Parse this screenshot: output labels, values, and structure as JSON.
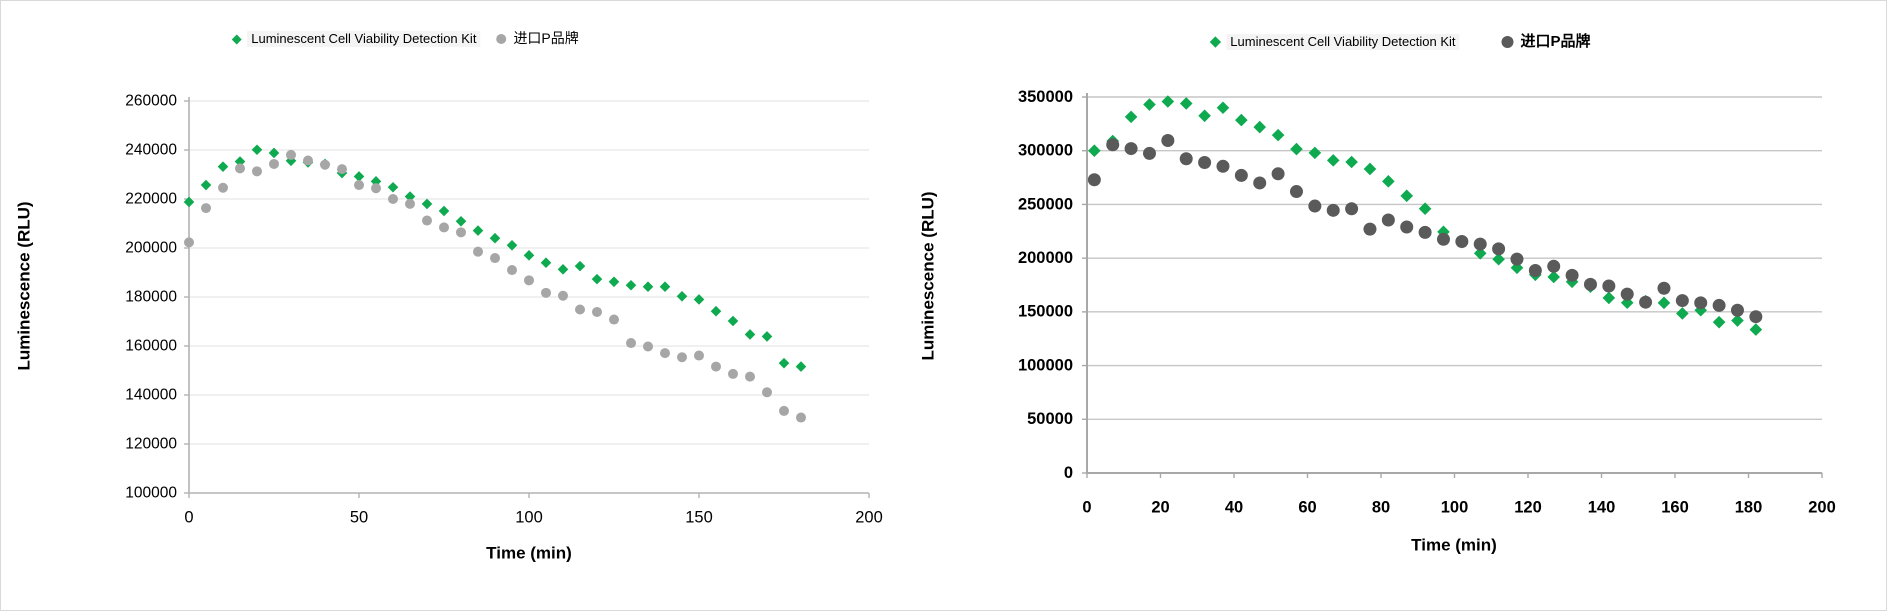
{
  "page": {
    "background": "#ffffff",
    "border_color": "#d9d9d9"
  },
  "chart_data": [
    {
      "id": "left-chart",
      "type": "scatter",
      "title": "",
      "xlabel": "Time (min)",
      "ylabel": "Luminescence (RLU)",
      "xlim": [
        0,
        200
      ],
      "ylim": [
        100000,
        260000
      ],
      "x_ticks": [
        0,
        50,
        100,
        150,
        200
      ],
      "y_ticks": [
        100000,
        120000,
        140000,
        160000,
        180000,
        200000,
        220000,
        240000,
        260000
      ],
      "grid": true,
      "tick_labels_bold": false,
      "legend_position": "top",
      "legend": [
        {
          "label": "Luminescent Cell Viability Detection Kit",
          "marker": "diamond",
          "color": "#0faa50",
          "bold": false,
          "highlight": true
        },
        {
          "label": "进口P品牌",
          "marker": "circle",
          "color": "#a6a6a6",
          "bold": false,
          "highlight": false
        }
      ],
      "series": [
        {
          "name": "Luminescent Cell Viability Detection Kit",
          "marker": "diamond",
          "color": "#0faa50",
          "size": 4.5,
          "x": [
            0,
            5,
            10,
            15,
            20,
            25,
            30,
            35,
            40,
            45,
            50,
            55,
            60,
            65,
            70,
            75,
            80,
            85,
            90,
            95,
            100,
            105,
            110,
            115,
            120,
            125,
            130,
            135,
            140,
            145,
            150,
            155,
            160,
            165,
            170,
            175,
            180
          ],
          "y": [
            218800,
            225700,
            233200,
            235300,
            240100,
            238800,
            235600,
            234900,
            234300,
            230600,
            229200,
            227200,
            224800,
            221000,
            218000,
            215100,
            210900,
            207100,
            204000,
            201100,
            197000,
            194000,
            191300,
            192600,
            187300,
            186200,
            184800,
            184200,
            184200,
            180300,
            179000,
            174200,
            170200,
            164700,
            163900,
            153000,
            151600
          ]
        },
        {
          "name": "进口P品牌",
          "marker": "circle",
          "color": "#a6a6a6",
          "size": 5,
          "x": [
            0,
            5,
            10,
            15,
            20,
            25,
            30,
            35,
            40,
            45,
            50,
            55,
            60,
            65,
            70,
            75,
            80,
            85,
            90,
            95,
            100,
            105,
            110,
            115,
            120,
            125,
            130,
            135,
            140,
            145,
            150,
            155,
            160,
            165,
            170,
            175,
            180
          ],
          "y": [
            202300,
            216300,
            224600,
            232500,
            231300,
            234300,
            238000,
            235700,
            234000,
            232200,
            225700,
            224400,
            220000,
            218000,
            211200,
            208400,
            206400,
            198500,
            195900,
            191000,
            186800,
            181700,
            180500,
            174900,
            173900,
            170800,
            161200,
            159800,
            157100,
            155400,
            156100,
            151600,
            148600,
            147500,
            141100,
            133500,
            130800
          ]
        }
      ]
    },
    {
      "id": "right-chart",
      "type": "scatter",
      "title": "",
      "xlabel": "Time  (min)",
      "ylabel": "Luminescence  (RLU)",
      "xlim": [
        0,
        200
      ],
      "ylim": [
        0,
        350000
      ],
      "x_ticks": [
        0,
        20,
        40,
        60,
        80,
        100,
        120,
        140,
        160,
        180,
        200
      ],
      "y_ticks": [
        0,
        50000,
        100000,
        150000,
        200000,
        250000,
        300000,
        350000
      ],
      "grid": true,
      "tick_labels_bold": true,
      "legend_position": "top",
      "legend": [
        {
          "label": "Luminescent Cell Viability Detection Kit",
          "marker": "diamond",
          "color": "#0faa50",
          "bold": false,
          "highlight": true
        },
        {
          "label": "进口P品牌",
          "marker": "circle",
          "color": "#5a5a5a",
          "bold": true,
          "highlight": false
        }
      ],
      "series": [
        {
          "name": "Luminescent Cell Viability Detection Kit",
          "marker": "diamond",
          "color": "#0faa50",
          "size": 5.5,
          "x": [
            2,
            7,
            12,
            17,
            22,
            27,
            32,
            37,
            42,
            47,
            52,
            57,
            62,
            67,
            72,
            77,
            82,
            87,
            92,
            97,
            102,
            107,
            112,
            117,
            122,
            127,
            132,
            137,
            142,
            147,
            152,
            157,
            162,
            167,
            172,
            177,
            182
          ],
          "y": [
            300000,
            309000,
            331500,
            343000,
            345800,
            344000,
            332500,
            340000,
            328500,
            322000,
            314500,
            301500,
            298000,
            291000,
            289500,
            283000,
            271500,
            258000,
            246000,
            224500,
            215000,
            204500,
            199000,
            191000,
            184500,
            182500,
            178000,
            173400,
            163000,
            158500,
            160000,
            158400,
            148500,
            151500,
            140400,
            141900,
            133500
          ]
        },
        {
          "name": "进口P品牌",
          "marker": "circle",
          "color": "#5a5a5a",
          "size": 6.5,
          "x": [
            2,
            7,
            12,
            17,
            22,
            27,
            32,
            37,
            42,
            47,
            52,
            57,
            62,
            67,
            72,
            77,
            82,
            87,
            92,
            97,
            102,
            107,
            112,
            117,
            122,
            127,
            132,
            137,
            142,
            147,
            152,
            157,
            162,
            167,
            172,
            177,
            182
          ],
          "y": [
            273000,
            305500,
            302000,
            297500,
            309500,
            292500,
            289000,
            285500,
            277000,
            270000,
            278500,
            262000,
            248500,
            244500,
            246000,
            227000,
            235500,
            229000,
            224000,
            217600,
            215500,
            213100,
            208600,
            199100,
            188500,
            192400,
            184000,
            175600,
            174100,
            166500,
            159000,
            172000,
            160500,
            158400,
            156000,
            151500,
            145500
          ]
        }
      ]
    }
  ]
}
